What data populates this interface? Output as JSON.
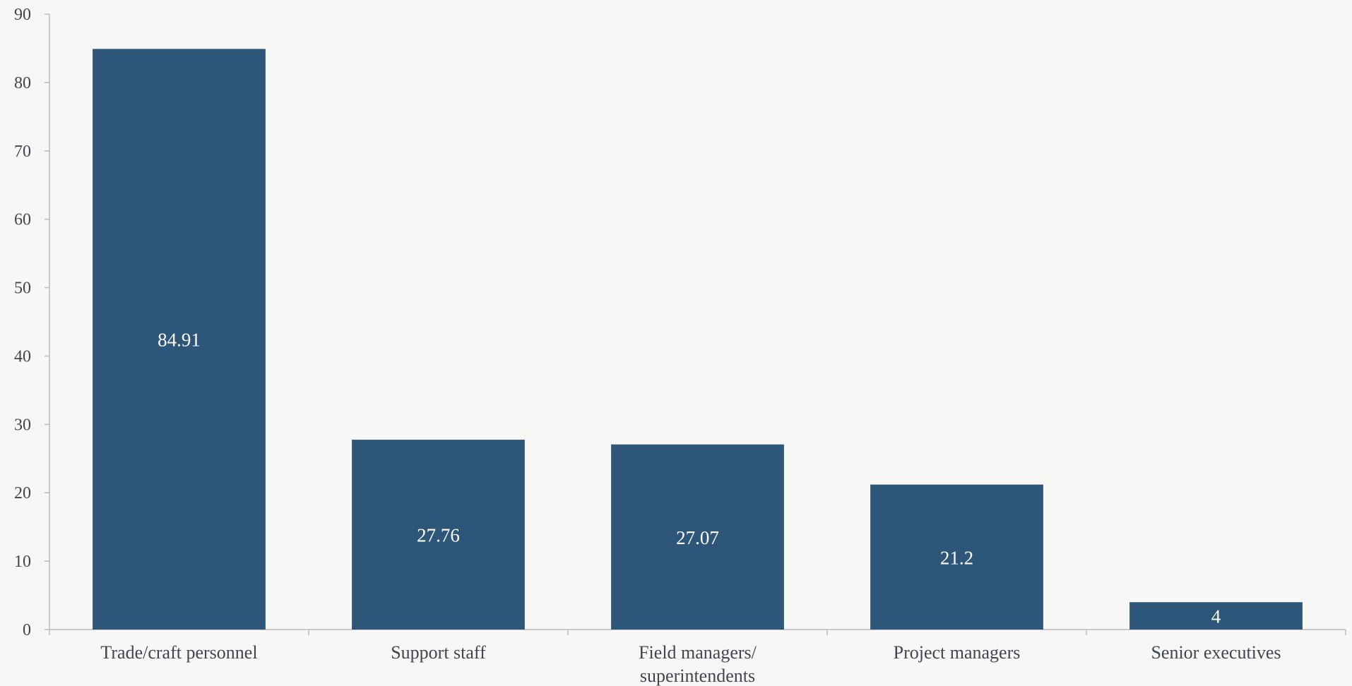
{
  "chart_data": {
    "type": "bar",
    "title": "",
    "xlabel": "",
    "ylabel": "",
    "categories": [
      "Trade/craft personnel",
      "Support staff",
      "Field managers/ superintendents",
      "Project managers",
      "Senior executives"
    ],
    "category_lines": [
      [
        "Trade/craft personnel"
      ],
      [
        "Support staff"
      ],
      [
        "Field managers/",
        "superintendents"
      ],
      [
        "Project managers"
      ],
      [
        "Senior executives"
      ]
    ],
    "values": [
      84.91,
      27.76,
      27.07,
      21.2,
      4
    ],
    "value_labels": [
      "84.91",
      "27.76",
      "27.07",
      "21.2",
      "4"
    ],
    "ylim": [
      0,
      90
    ],
    "yticks": [
      0,
      10,
      20,
      30,
      40,
      50,
      60,
      70,
      80,
      90
    ],
    "grid": false,
    "legend": "none",
    "colors": {
      "bar": "#2d5679",
      "axis": "#b8bcc2",
      "text": "#3f4652",
      "data_label": "#ffffff",
      "background": "#f7f7f5"
    }
  }
}
